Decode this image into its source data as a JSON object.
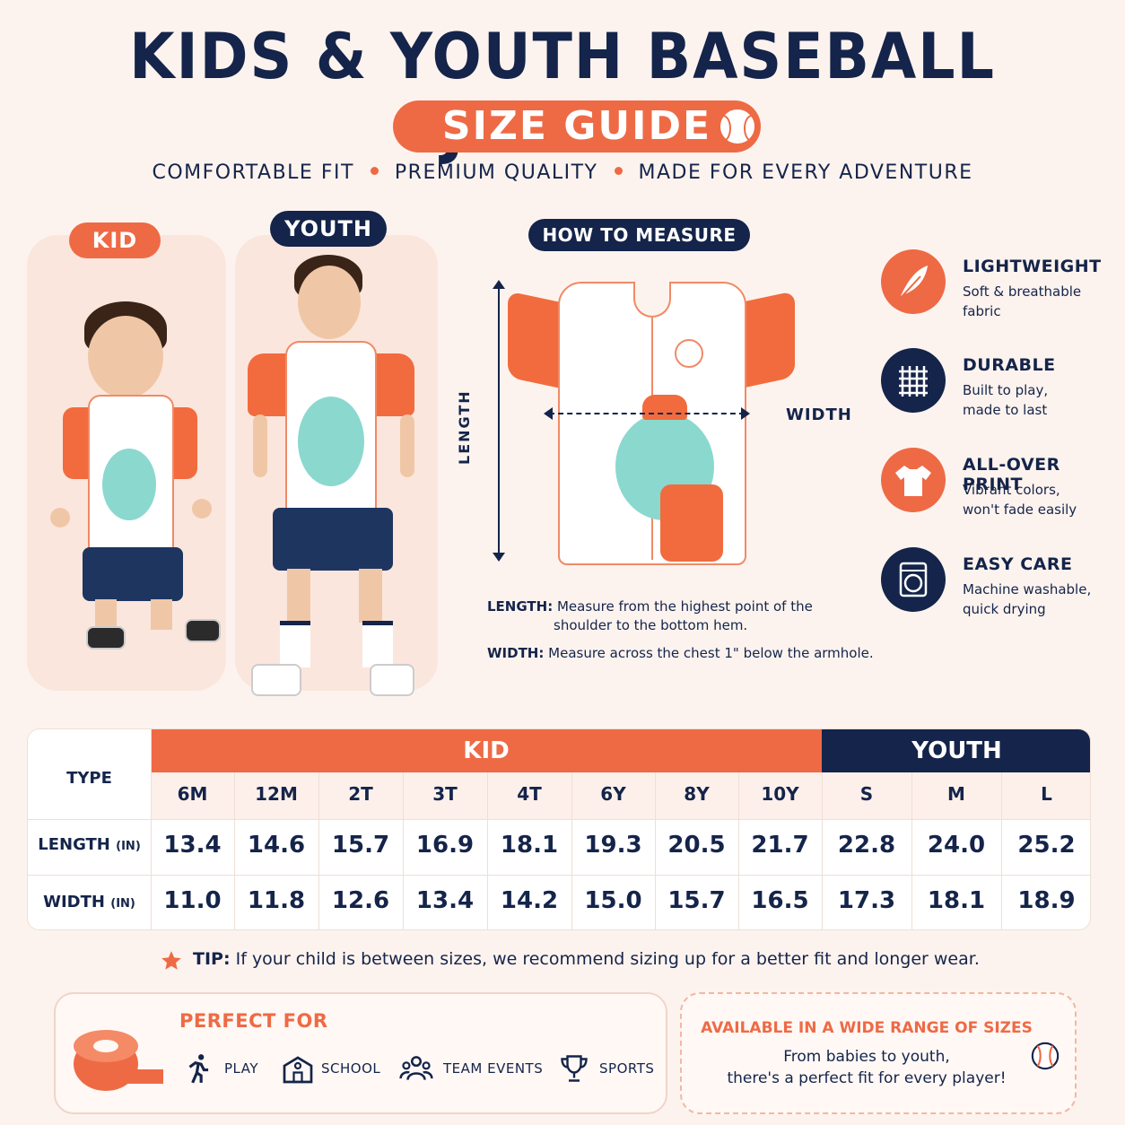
{
  "header": {
    "title": "KIDS & YOUTH BASEBALL JERSEY",
    "badge": "SIZE GUIDE",
    "taglines": [
      "COMFORTABLE FIT",
      "PREMIUM QUALITY",
      "MADE FOR EVERY ADVENTURE"
    ]
  },
  "models": {
    "kid_label": "KID",
    "youth_label": "YOUTH"
  },
  "measure": {
    "title": "HOW TO MEASURE",
    "length_axis": "LENGTH",
    "width_axis": "WIDTH",
    "length_label": "LENGTH:",
    "length_text_1": "Measure from the highest point of the",
    "length_text_2": "shoulder to the bottom hem.",
    "width_label": "WIDTH:",
    "width_text": "Measure across the chest 1\" below the armhole."
  },
  "features": [
    {
      "title": "LIGHTWEIGHT",
      "line1": "Soft & breathable",
      "line2": "fabric",
      "icon": "feather-icon",
      "color": "#ee6a45"
    },
    {
      "title": "DURABLE",
      "line1": "Built to play,",
      "line2": "made to last",
      "icon": "grid-fabric-icon",
      "color": "#14244a"
    },
    {
      "title": "ALL-OVER PRINT",
      "line1": "Vibrant colors,",
      "line2": "won't fade easily",
      "icon": "tshirt-icon",
      "color": "#ee6a45"
    },
    {
      "title": "EASY CARE",
      "line1": "Machine washable,",
      "line2": "quick drying",
      "icon": "washing-machine-icon",
      "color": "#14244a"
    }
  ],
  "table": {
    "type_header": "TYPE",
    "kid_header": "KID",
    "youth_header": "YOUTH",
    "sizes": [
      "6M",
      "12M",
      "2T",
      "3T",
      "4T",
      "6Y",
      "8Y",
      "10Y",
      "S",
      "M",
      "L"
    ],
    "rows": [
      {
        "label": "LENGTH",
        "unit": "(IN)",
        "values": [
          "13.4",
          "14.6",
          "15.7",
          "16.9",
          "18.1",
          "19.3",
          "20.5",
          "21.7",
          "22.8",
          "24.0",
          "25.2"
        ]
      },
      {
        "label": "WIDTH",
        "unit": "(IN)",
        "values": [
          "11.0",
          "11.8",
          "12.6",
          "13.4",
          "14.2",
          "15.0",
          "15.7",
          "16.5",
          "17.3",
          "18.1",
          "18.9"
        ]
      }
    ]
  },
  "tip": {
    "label": "TIP:",
    "text": "If your child is between sizes, we recommend sizing up for a better fit and longer wear."
  },
  "perfect_for": {
    "title": "PERFECT FOR",
    "items": [
      "PLAY",
      "SCHOOL",
      "TEAM EVENTS",
      "SPORTS"
    ]
  },
  "availability": {
    "title": "AVAILABLE IN A WIDE RANGE OF SIZES",
    "line1": "From babies to youth,",
    "line2": "there's a perfect fit for every player!"
  },
  "colors": {
    "navy": "#14244a",
    "orange": "#ee6a45",
    "background": "#fdf3ee"
  }
}
